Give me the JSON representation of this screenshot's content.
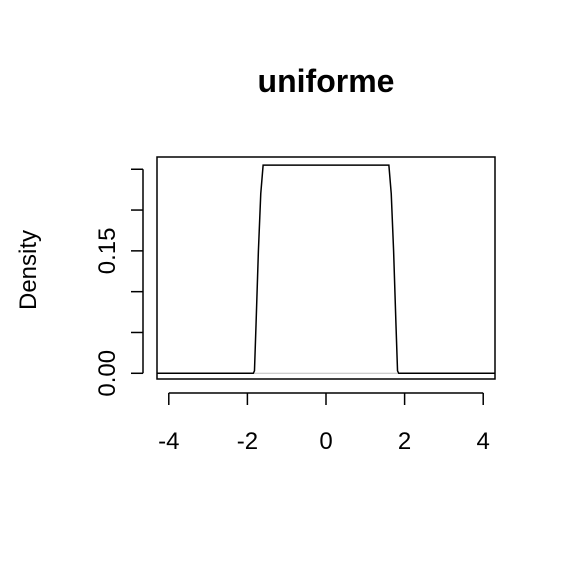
{
  "chart_data": {
    "type": "line",
    "title": "uniforme",
    "xlabel": "",
    "ylabel": "Density",
    "xlim": [
      -4.3,
      4.3
    ],
    "ylim": [
      -0.007,
      0.265
    ],
    "x_ticks": [
      -4,
      -2,
      0,
      2,
      4
    ],
    "x_tick_labels": [
      "-4",
      "-2",
      "0",
      "2",
      "4"
    ],
    "y_ticks": [
      0,
      0.05,
      0.1,
      0.15,
      0.2,
      0.25
    ],
    "y_tick_labels": [
      "0.00",
      "",
      "",
      "0.15",
      "",
      ""
    ],
    "baseline": true,
    "series": [
      {
        "x": [
          -4.3,
          -1.85,
          -1.82,
          -1.78,
          -1.72,
          -1.66,
          -1.6,
          1.6,
          1.66,
          1.72,
          1.78,
          1.82,
          1.85,
          4.3
        ],
        "y": [
          0,
          0,
          0.003,
          0.06,
          0.15,
          0.22,
          0.255,
          0.255,
          0.22,
          0.15,
          0.06,
          0.003,
          0,
          0
        ]
      }
    ]
  }
}
